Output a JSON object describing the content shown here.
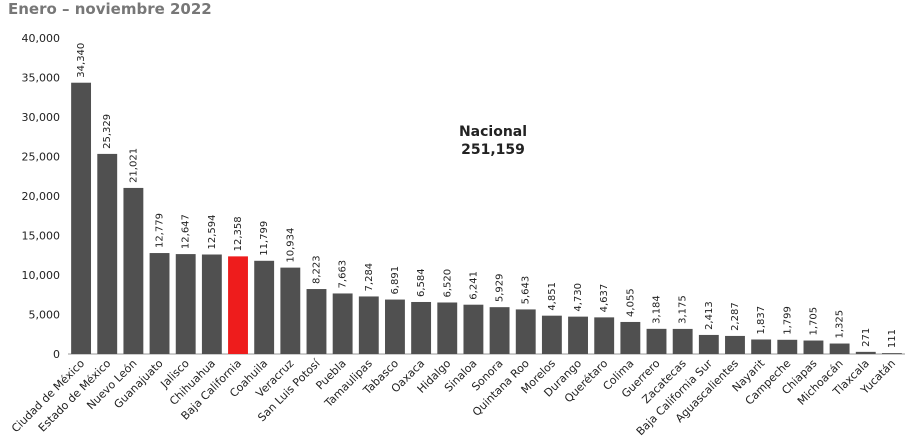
{
  "chart_data": {
    "type": "bar",
    "title": "Enero – noviembre 2022",
    "categories": [
      "Ciudad de México",
      "Estado de México",
      "Nuevo León",
      "Guanajuato",
      "Jalisco",
      "Chihuahua",
      "Baja California",
      "Coahuila",
      "Veracruz",
      "San Luis Potosí",
      "Puebla",
      "Tamaulipas",
      "Tabasco",
      "Oaxaca",
      "Hidalgo",
      "Sinaloa",
      "Sonora",
      "Quintana Roo",
      "Morelos",
      "Durango",
      "Querétaro",
      "Colima",
      "Guerrero",
      "Zacatecas",
      "Baja California Sur",
      "Aguascalientes",
      "Nayarit",
      "Campeche",
      "Chiapas",
      "Michoacán",
      "Tlaxcala",
      "Yucatán"
    ],
    "values": [
      34340,
      25329,
      21021,
      12779,
      12647,
      12594,
      12358,
      11799,
      10934,
      8223,
      7663,
      7284,
      6891,
      6584,
      6520,
      6241,
      5929,
      5643,
      4851,
      4730,
      4637,
      4055,
      3184,
      3175,
      2413,
      2287,
      1837,
      1799,
      1705,
      1325,
      271,
      111
    ],
    "value_labels": [
      "34,340",
      "25,329",
      "21,021",
      "12,779",
      "12,647",
      "12,594",
      "12,358",
      "11,799",
      "10,934",
      "8,223",
      "7,663",
      "7,284",
      "6,891",
      "6,584",
      "6,520",
      "6,241",
      "5,929",
      "5,643",
      "4,851",
      "4,730",
      "4,637",
      "4,055",
      "3,184",
      "3,175",
      "2,413",
      "2,287",
      "1,837",
      "1,799",
      "1,705",
      "1,325",
      "271",
      "111"
    ],
    "colors": [
      "#505050",
      "#505050",
      "#505050",
      "#505050",
      "#505050",
      "#505050",
      "#ee1c1c",
      "#505050",
      "#505050",
      "#505050",
      "#505050",
      "#505050",
      "#505050",
      "#505050",
      "#505050",
      "#505050",
      "#505050",
      "#505050",
      "#505050",
      "#505050",
      "#505050",
      "#505050",
      "#505050",
      "#505050",
      "#505050",
      "#505050",
      "#505050",
      "#505050",
      "#505050",
      "#505050",
      "#505050",
      "#505050"
    ],
    "ylim": [
      0,
      40000
    ],
    "yticks": [
      0,
      {
        "value": 5000,
        "label": "5,000"
      },
      {
        "value": 10000,
        "label": "10,000"
      },
      {
        "value": 15000,
        "label": "15,000"
      },
      {
        "value": 20000,
        "label": "20,000"
      },
      {
        "value": 25000,
        "label": "25,000"
      },
      {
        "value": 30000,
        "label": "30,000"
      },
      {
        "value": 35000,
        "label": "35,000"
      },
      {
        "value": 40000,
        "label": "40,000"
      }
    ],
    "annotation": {
      "label": "Nacional",
      "value": "251,159"
    }
  }
}
